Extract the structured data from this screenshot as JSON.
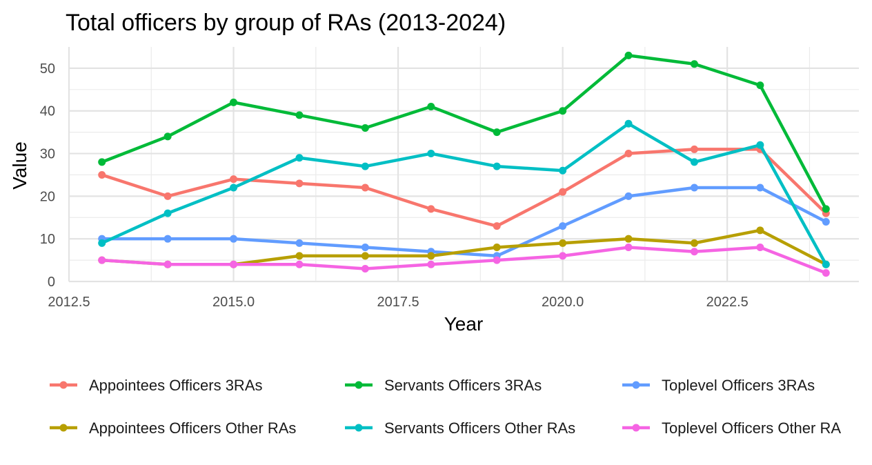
{
  "chart_data": {
    "type": "line",
    "title": "Total officers by group of RAs (2013-2024)",
    "xlabel": "Year",
    "ylabel": "Value",
    "xlim": [
      2012.5,
      2024.5
    ],
    "ylim": [
      0,
      55
    ],
    "x_ticks": [
      "2012.5",
      "2015.0",
      "2017.5",
      "2020.0",
      "2022.5"
    ],
    "x_tick_values": [
      2012.5,
      2015,
      2017.5,
      2020,
      2022.5
    ],
    "y_ticks": [
      "0",
      "10",
      "20",
      "30",
      "40",
      "50"
    ],
    "y_tick_values": [
      0,
      10,
      20,
      30,
      40,
      50
    ],
    "grid": true,
    "legend_position": "bottom",
    "x": [
      2013,
      2014,
      2015,
      2016,
      2017,
      2018,
      2019,
      2020,
      2021,
      2022,
      2023,
      2024
    ],
    "series": [
      {
        "name": "Appointees Officers 3RAs",
        "color": "#F8766D",
        "values": [
          25,
          20,
          24,
          23,
          22,
          17,
          13,
          21,
          30,
          31,
          31,
          16
        ]
      },
      {
        "name": "Servants Officers 3RAs",
        "color": "#00BA38",
        "values": [
          28,
          34,
          42,
          39,
          36,
          41,
          35,
          40,
          53,
          51,
          46,
          17
        ]
      },
      {
        "name": "Toplevel Officers 3RAs",
        "color": "#619CFF",
        "values": [
          10,
          10,
          10,
          9,
          8,
          7,
          6,
          13,
          20,
          22,
          22,
          14
        ]
      },
      {
        "name": "Appointees Officers Other RAs",
        "color": "#B79F00",
        "values": [
          5,
          4,
          4,
          6,
          6,
          6,
          8,
          9,
          10,
          9,
          12,
          4
        ]
      },
      {
        "name": "Servants Officers Other RAs",
        "color": "#00BFC4",
        "values": [
          9,
          16,
          22,
          29,
          27,
          30,
          27,
          26,
          37,
          28,
          32,
          4
        ]
      },
      {
        "name": "Toplevel Officers Other RA",
        "color": "#F564E3",
        "values": [
          5,
          4,
          4,
          4,
          3,
          4,
          5,
          6,
          8,
          7,
          8,
          2
        ]
      }
    ]
  }
}
